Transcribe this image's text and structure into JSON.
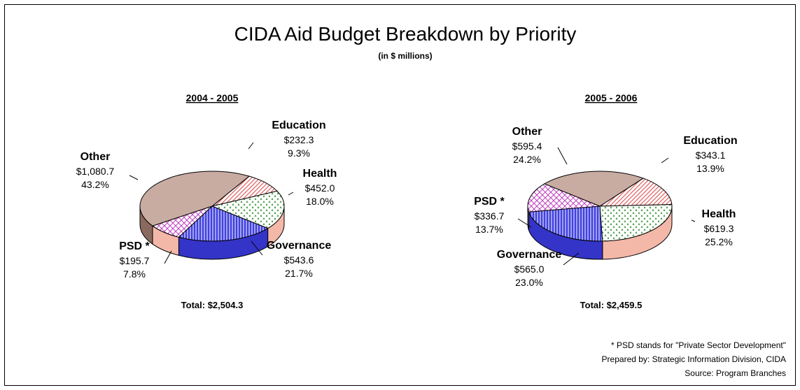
{
  "chart_data": {
    "type": "pie",
    "title": "CIDA Aid Budget Breakdown by Priority",
    "subtitle": "(in $ millions)",
    "pies": [
      {
        "year": "2004 - 2005",
        "total_label": "Total: $2,504.3",
        "slices": [
          {
            "name": "Education",
            "value_label": "$232.3",
            "pct_label": "9.3%",
            "value": 232.3,
            "color": "#f4b8a8",
            "pattern": "diag"
          },
          {
            "name": "Health",
            "value_label": "$452.0",
            "pct_label": "18.0%",
            "value": 452.0,
            "color": "#2e8b2e",
            "pattern": "dots"
          },
          {
            "name": "Governance",
            "value_label": "$543.6",
            "pct_label": "21.7%",
            "value": 543.6,
            "color": "#4040e0",
            "pattern": "vert"
          },
          {
            "name": "PSD *",
            "value_label": "$195.7",
            "pct_label": "7.8%",
            "value": 195.7,
            "color": "#c040c0",
            "pattern": "cross"
          },
          {
            "name": "Other",
            "value_label": "$1,080.7",
            "pct_label": "43.2%",
            "value": 1080.7,
            "color": "#c8aca2",
            "pattern": "solid"
          }
        ]
      },
      {
        "year": "2005 - 2006",
        "total_label": "Total: $2,459.5",
        "slices": [
          {
            "name": "Education",
            "value_label": "$343.1",
            "pct_label": "13.9%",
            "value": 343.1,
            "color": "#f4b8a8",
            "pattern": "diag"
          },
          {
            "name": "Health",
            "value_label": "$619.3",
            "pct_label": "25.2%",
            "value": 619.3,
            "color": "#2e8b2e",
            "pattern": "dots"
          },
          {
            "name": "Governance",
            "value_label": "$565.0",
            "pct_label": "23.0%",
            "value": 565.0,
            "color": "#4040e0",
            "pattern": "vert"
          },
          {
            "name": "PSD *",
            "value_label": "$336.7",
            "pct_label": "13.7%",
            "value": 336.7,
            "color": "#c040c0",
            "pattern": "cross"
          },
          {
            "name": "Other",
            "value_label": "$595.4",
            "pct_label": "24.2%",
            "value": 595.4,
            "color": "#c8aca2",
            "pattern": "solid"
          }
        ]
      }
    ],
    "footnotes": [
      "* PSD stands for \"Private Sector Development\"",
      "Prepared by: Strategic Information Division, CIDA",
      "Source:  Program Branches"
    ]
  }
}
